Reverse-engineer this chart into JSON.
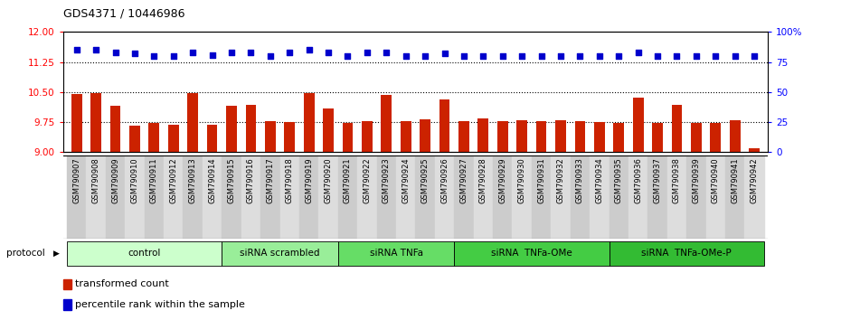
{
  "title": "GDS4371 / 10446986",
  "samples": [
    "GSM790907",
    "GSM790908",
    "GSM790909",
    "GSM790910",
    "GSM790911",
    "GSM790912",
    "GSM790913",
    "GSM790914",
    "GSM790915",
    "GSM790916",
    "GSM790917",
    "GSM790918",
    "GSM790919",
    "GSM790920",
    "GSM790921",
    "GSM790922",
    "GSM790923",
    "GSM790924",
    "GSM790925",
    "GSM790926",
    "GSM790927",
    "GSM790928",
    "GSM790929",
    "GSM790930",
    "GSM790931",
    "GSM790932",
    "GSM790933",
    "GSM790934",
    "GSM790935",
    "GSM790936",
    "GSM790937",
    "GSM790938",
    "GSM790939",
    "GSM790940",
    "GSM790941",
    "GSM790942"
  ],
  "bar_values": [
    10.45,
    10.47,
    10.15,
    9.65,
    9.72,
    9.68,
    10.47,
    9.68,
    10.15,
    10.17,
    9.77,
    9.75,
    10.47,
    10.08,
    9.73,
    9.78,
    10.42,
    9.78,
    9.82,
    10.32,
    9.78,
    9.85,
    9.78,
    9.8,
    9.78,
    9.8,
    9.78,
    9.75,
    9.73,
    10.35,
    9.73,
    10.18,
    9.73,
    9.73,
    9.8,
    9.1
  ],
  "percentile_values": [
    85,
    85,
    83,
    82,
    80,
    80,
    83,
    81,
    83,
    83,
    80,
    83,
    85,
    83,
    80,
    83,
    83,
    80,
    80,
    82,
    80,
    80,
    80,
    80,
    80,
    80,
    80,
    80,
    80,
    83,
    80,
    80,
    80,
    80,
    80,
    80
  ],
  "ylim_left": [
    9.0,
    12.0
  ],
  "ylim_right": [
    0,
    100
  ],
  "yticks_left": [
    9.0,
    9.75,
    10.5,
    11.25,
    12.0
  ],
  "yticks_right": [
    0,
    25,
    50,
    75,
    100
  ],
  "hlines": [
    9.75,
    10.5,
    11.25
  ],
  "bar_color": "#CC2200",
  "dot_color": "#0000CC",
  "bar_bottom": 9.0,
  "groups": [
    {
      "label": "control",
      "start": 0,
      "end": 8,
      "color": "#CCFFCC"
    },
    {
      "label": "siRNA scrambled",
      "start": 8,
      "end": 14,
      "color": "#99EE99"
    },
    {
      "label": "siRNA TNFa",
      "start": 14,
      "end": 20,
      "color": "#66DD66"
    },
    {
      "label": "siRNA  TNFa-OMe",
      "start": 20,
      "end": 28,
      "color": "#44CC44"
    },
    {
      "label": "siRNA  TNFa-OMe-P",
      "start": 28,
      "end": 36,
      "color": "#33BB33"
    }
  ],
  "protocol_label": "protocol",
  "legend_items": [
    {
      "label": "transformed count",
      "color": "#CC2200"
    },
    {
      "label": "percentile rank within the sample",
      "color": "#0000CC"
    }
  ],
  "xtick_bg_even": "#CCCCCC",
  "xtick_bg_odd": "#DDDDDD"
}
